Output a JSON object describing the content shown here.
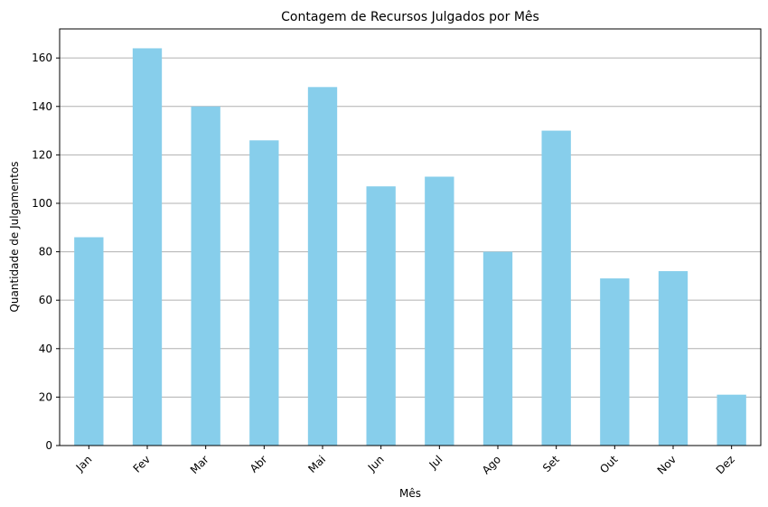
{
  "chart_data": {
    "type": "bar",
    "title": "Contagem de Recursos Julgados por Mês",
    "xlabel": "Mês",
    "ylabel": "Quantidade de Julgamentos",
    "categories": [
      "Jan",
      "Fev",
      "Mar",
      "Abr",
      "Mai",
      "Jun",
      "Jul",
      "Ago",
      "Set",
      "Out",
      "Nov",
      "Dez"
    ],
    "values": [
      86,
      164,
      140,
      126,
      148,
      107,
      111,
      80,
      130,
      69,
      72,
      21
    ],
    "ylim": [
      0,
      172
    ],
    "yticks": [
      0,
      20,
      40,
      60,
      80,
      100,
      120,
      140,
      160
    ],
    "grid": "y",
    "legend": "none",
    "bar_color": "#87ceeb"
  }
}
